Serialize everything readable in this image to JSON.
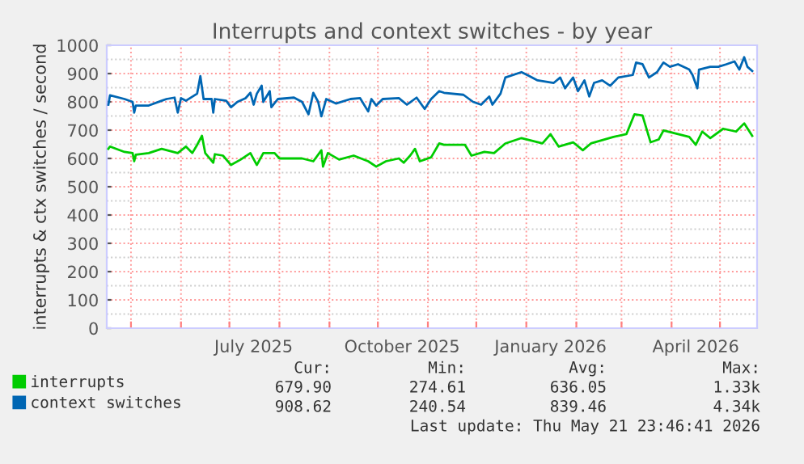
{
  "chart_data": {
    "type": "line",
    "title": "Interrupts and context switches - by year",
    "ylabel": "interrupts & ctx switches / second",
    "xlim": [
      "2025-04-16",
      "2026-05-24"
    ],
    "ylim": [
      0,
      1000
    ],
    "yticks": [
      0,
      100,
      200,
      300,
      400,
      500,
      600,
      700,
      800,
      900,
      1000
    ],
    "xticks": [
      {
        "value": "2025-05-01",
        "label": null
      },
      {
        "value": "2025-06-01",
        "label": null
      },
      {
        "value": "2025-07-01",
        "label": null
      },
      {
        "value": "2025-07-16",
        "label": "July 2025"
      },
      {
        "value": "2025-08-01",
        "label": null
      },
      {
        "value": "2025-09-01",
        "label": null
      },
      {
        "value": "2025-10-01",
        "label": null
      },
      {
        "value": "2025-10-16",
        "label": "October 2025"
      },
      {
        "value": "2025-11-01",
        "label": null
      },
      {
        "value": "2025-12-01",
        "label": null
      },
      {
        "value": "2026-01-01",
        "label": null
      },
      {
        "value": "2026-01-16",
        "label": "January 2026"
      },
      {
        "value": "2026-02-01",
        "label": null
      },
      {
        "value": "2026-03-01",
        "label": null
      },
      {
        "value": "2026-04-01",
        "label": null
      },
      {
        "value": "2026-04-16",
        "label": "April 2026"
      },
      {
        "value": "2026-05-01",
        "label": null
      }
    ],
    "grid": true,
    "legend": "bottom",
    "marker": "none",
    "line_style": "solid",
    "series": [
      {
        "name": "interrupts",
        "color": "#00cc00",
        "x": [
          "2025-04-17",
          "2025-04-18",
          "2025-04-27",
          "2025-05-02",
          "2025-05-03",
          "2025-05-04",
          "2025-05-12",
          "2025-05-20",
          "2025-05-30",
          "2025-06-04",
          "2025-06-08",
          "2025-06-11",
          "2025-06-14",
          "2025-06-16",
          "2025-06-21",
          "2025-06-22",
          "2025-06-27",
          "2025-07-02",
          "2025-07-08",
          "2025-07-14",
          "2025-07-18",
          "2025-07-22",
          "2025-07-29",
          "2025-08-01",
          "2025-08-15",
          "2025-08-22",
          "2025-08-27",
          "2025-08-28",
          "2025-08-31",
          "2025-09-07",
          "2025-09-16",
          "2025-09-25",
          "2025-09-30",
          "2025-10-06",
          "2025-10-14",
          "2025-10-17",
          "2025-10-21",
          "2025-10-24",
          "2025-10-27",
          "2025-11-03",
          "2025-11-08",
          "2025-11-11",
          "2025-11-24",
          "2025-11-28",
          "2025-12-06",
          "2025-12-12",
          "2025-12-19",
          "2025-12-29",
          "2026-01-11",
          "2026-01-16",
          "2026-01-21",
          "2026-01-30",
          "2026-02-05",
          "2026-02-10",
          "2026-02-24",
          "2026-03-04",
          "2026-03-09",
          "2026-03-14",
          "2026-03-19",
          "2026-03-24",
          "2026-03-27",
          "2026-04-05",
          "2026-04-12",
          "2026-04-16",
          "2026-04-20",
          "2026-04-25",
          "2026-05-03",
          "2026-05-11",
          "2026-05-16",
          "2026-05-21"
        ],
        "values": [
          634,
          642,
          623,
          619,
          590,
          613,
          619,
          634,
          619,
          642,
          619,
          648,
          680,
          619,
          585,
          615,
          610,
          577,
          596,
          619,
          577,
          619,
          619,
          600,
          600,
          590,
          629,
          571,
          619,
          596,
          610,
          590,
          571,
          590,
          600,
          585,
          610,
          634,
          590,
          604,
          653,
          648,
          648,
          610,
          623,
          619,
          653,
          672,
          653,
          686,
          642,
          657,
          629,
          653,
          676,
          686,
          756,
          752,
          657,
          667,
          699,
          686,
          676,
          648,
          695,
          672,
          705,
          695,
          724,
          680
        ]
      },
      {
        "name": "context switches",
        "color": "#0066b3",
        "x": [
          "2025-04-17",
          "2025-04-18",
          "2025-04-27",
          "2025-05-02",
          "2025-05-03",
          "2025-05-04",
          "2025-05-12",
          "2025-05-20",
          "2025-05-23",
          "2025-05-28",
          "2025-05-30",
          "2025-06-01",
          "2025-06-04",
          "2025-06-11",
          "2025-06-13",
          "2025-06-15",
          "2025-06-20",
          "2025-06-21",
          "2025-06-22",
          "2025-06-29",
          "2025-07-02",
          "2025-07-06",
          "2025-07-11",
          "2025-07-14",
          "2025-07-16",
          "2025-07-18",
          "2025-07-21",
          "2025-07-22",
          "2025-07-26",
          "2025-07-27",
          "2025-07-31",
          "2025-08-10",
          "2025-08-15",
          "2025-08-19",
          "2025-08-22",
          "2025-08-25",
          "2025-08-27",
          "2025-08-30",
          "2025-09-05",
          "2025-09-14",
          "2025-09-20",
          "2025-09-25",
          "2025-09-27",
          "2025-09-30",
          "2025-10-04",
          "2025-10-14",
          "2025-10-19",
          "2025-10-25",
          "2025-10-30",
          "2025-11-03",
          "2025-11-08",
          "2025-11-11",
          "2025-11-23",
          "2025-11-29",
          "2025-12-04",
          "2025-12-09",
          "2025-12-11",
          "2025-12-16",
          "2025-12-19",
          "2025-12-29",
          "2026-01-03",
          "2026-01-08",
          "2026-01-18",
          "2026-01-22",
          "2026-01-25",
          "2026-01-30",
          "2026-02-02",
          "2026-02-06",
          "2026-02-09",
          "2026-02-12",
          "2026-02-17",
          "2026-02-22",
          "2026-02-27",
          "2026-03-08",
          "2026-03-10",
          "2026-03-14",
          "2026-03-18",
          "2026-03-23",
          "2026-03-27",
          "2026-03-31",
          "2026-04-05",
          "2026-04-12",
          "2026-04-14",
          "2026-04-17",
          "2026-04-18",
          "2026-04-25",
          "2026-04-30",
          "2026-05-05",
          "2026-05-10",
          "2026-05-13",
          "2026-05-16",
          "2026-05-18",
          "2026-05-21"
        ],
        "values": [
          790,
          823,
          810,
          800,
          762,
          787,
          787,
          804,
          810,
          815,
          762,
          813,
          804,
          829,
          891,
          810,
          810,
          762,
          810,
          804,
          781,
          800,
          813,
          832,
          790,
          829,
          857,
          800,
          838,
          781,
          810,
          815,
          800,
          756,
          832,
          800,
          749,
          810,
          794,
          810,
          813,
          766,
          810,
          787,
          810,
          813,
          790,
          815,
          775,
          810,
          838,
          832,
          825,
          800,
          790,
          819,
          790,
          829,
          886,
          905,
          891,
          876,
          867,
          886,
          848,
          886,
          838,
          876,
          819,
          867,
          876,
          857,
          886,
          895,
          939,
          933,
          886,
          905,
          939,
          924,
          933,
          914,
          895,
          848,
          914,
          924,
          924,
          933,
          943,
          914,
          958,
          924,
          909
        ]
      }
    ],
    "annotations": [
      "Cur:",
      "Min:",
      "Avg:",
      "Max:",
      "679.90",
      "274.61",
      "636.05",
      "1.33k",
      "908.62",
      "240.54",
      "839.46",
      "4.34k",
      "Last update: Thu May 21 23:46:41 2026"
    ]
  }
}
